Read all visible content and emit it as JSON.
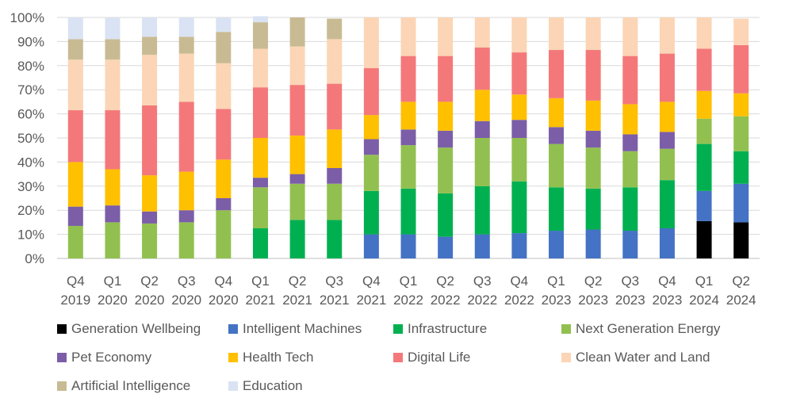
{
  "chart_data": {
    "type": "bar",
    "stacked": true,
    "percent": true,
    "categories": [
      [
        "Q4",
        "2019"
      ],
      [
        "Q1",
        "2020"
      ],
      [
        "Q2",
        "2020"
      ],
      [
        "Q3",
        "2020"
      ],
      [
        "Q4",
        "2020"
      ],
      [
        "Q1",
        "2021"
      ],
      [
        "Q2",
        "2021"
      ],
      [
        "Q3",
        "2021"
      ],
      [
        "Q4",
        "2021"
      ],
      [
        "Q1",
        "2022"
      ],
      [
        "Q2",
        "2022"
      ],
      [
        "Q3",
        "2022"
      ],
      [
        "Q4",
        "2022"
      ],
      [
        "Q1",
        "2023"
      ],
      [
        "Q2",
        "2023"
      ],
      [
        "Q3",
        "2023"
      ],
      [
        "Q4",
        "2023"
      ],
      [
        "Q1",
        "2024"
      ],
      [
        "Q2",
        "2024"
      ]
    ],
    "ylim": [
      0,
      100
    ],
    "yticks": [
      "0%",
      "10%",
      "20%",
      "30%",
      "40%",
      "50%",
      "60%",
      "70%",
      "80%",
      "90%",
      "100%"
    ],
    "grid": true,
    "legend_position": "bottom",
    "series": [
      {
        "name": "Generation Wellbeing",
        "color": "#000000",
        "values": [
          0,
          0,
          0,
          0,
          0,
          0,
          0,
          0,
          0,
          0,
          0,
          0,
          0,
          0,
          0,
          0,
          0,
          15.5,
          15
        ]
      },
      {
        "name": "Intelligent Machines",
        "color": "#4472c4",
        "values": [
          0,
          0,
          0,
          0,
          0,
          0,
          0,
          0,
          10,
          10,
          9,
          10,
          10.5,
          11.5,
          12,
          11.5,
          12.5,
          12.5,
          16
        ]
      },
      {
        "name": "Infrastructure",
        "color": "#00b050",
        "values": [
          0,
          0,
          0,
          0,
          0,
          12.5,
          16,
          16,
          18,
          19,
          18,
          20,
          21.5,
          18,
          17,
          18,
          20,
          19.5,
          13.5
        ]
      },
      {
        "name": "Next Generation Energy",
        "color": "#92c050",
        "values": [
          13.5,
          15,
          14.5,
          15,
          20,
          17,
          15,
          15,
          15,
          18,
          19,
          20,
          18,
          18,
          17,
          15,
          13,
          10.5,
          14.5
        ]
      },
      {
        "name": "Pet Economy",
        "color": "#7b5ea7",
        "values": [
          8,
          7,
          5,
          5,
          5,
          4,
          4,
          6.5,
          6.5,
          6.5,
          7,
          7,
          7.5,
          7,
          7,
          7,
          7,
          0,
          0
        ]
      },
      {
        "name": "Health Tech",
        "color": "#ffc000",
        "values": [
          18.5,
          15,
          15,
          16,
          16,
          16.5,
          16,
          16,
          10,
          11.5,
          12,
          13,
          10.5,
          12,
          12.5,
          12.5,
          12.5,
          11.5,
          9.5
        ]
      },
      {
        "name": "Digital Life",
        "color": "#f4787a",
        "values": [
          21.5,
          24.5,
          29,
          29,
          21,
          21,
          21,
          19,
          19.5,
          19,
          19,
          17.5,
          17.5,
          20,
          21,
          20,
          20,
          17.5,
          20
        ]
      },
      {
        "name": "Clean Water and Land",
        "color": "#fbd5b5",
        "values": [
          21,
          21,
          21,
          20,
          19,
          16,
          16,
          18.5,
          21,
          16,
          16,
          12.5,
          14.5,
          13.5,
          13.5,
          16,
          15,
          13,
          11
        ]
      },
      {
        "name": "Artificial Intelligence",
        "color": "#c8bb93",
        "values": [
          8.5,
          8.5,
          7.5,
          7,
          13,
          11,
          12,
          8.5,
          0,
          0,
          0,
          0,
          0,
          0,
          0,
          0,
          0,
          0,
          0
        ]
      },
      {
        "name": "Education",
        "color": "#dae3f3",
        "values": [
          9,
          9,
          8,
          8,
          6,
          2.5,
          0,
          0,
          0,
          0,
          0,
          0,
          0,
          0,
          0,
          0,
          0,
          0,
          0
        ]
      }
    ],
    "legend_order": [
      "Generation Wellbeing",
      "Intelligent Machines",
      "Infrastructure",
      "Next Generation Energy",
      "Pet Economy",
      "Health Tech",
      "Digital Life",
      "Clean Water and Land",
      "Artificial Intelligence",
      "Education"
    ]
  }
}
